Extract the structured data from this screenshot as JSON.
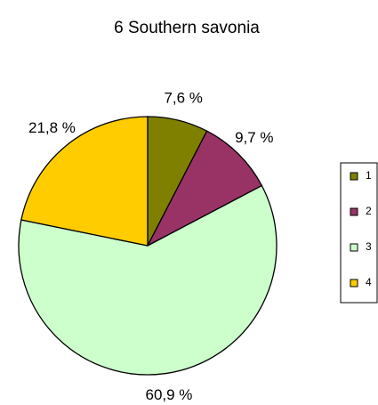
{
  "chart_data": {
    "type": "pie",
    "title": "6 Southern savonia",
    "categories": [
      "1",
      "2",
      "3",
      "4"
    ],
    "values": [
      7.6,
      9.7,
      60.9,
      21.8
    ],
    "value_labels": [
      "7,6 %",
      "9,7 %",
      "60,9 %",
      "21,8 %"
    ],
    "colors": [
      "#808000",
      "#993366",
      "#CCFFCC",
      "#FFCC00"
    ],
    "legend": "right"
  }
}
